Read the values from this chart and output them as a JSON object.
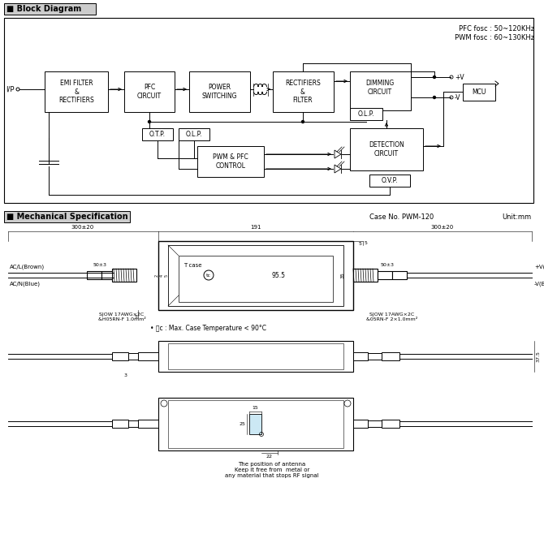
{
  "bg_color": "#ffffff",
  "section1_title": "■ Block Diagram",
  "section2_title": "■ Mechanical Specification",
  "pfc_text": "PFC fosc : 50~120KHz",
  "pwm_text": "PWM fosc : 60~130KHz",
  "case_no_text": "Case No. PWM-120",
  "unit_text": "Unit:mm",
  "tc_note": "• Ⓣc : Max. Case Temperature < 90°C",
  "antenna_note": "The position of antenna\nKeep it free from  metal or\nany material that stops RF signal"
}
